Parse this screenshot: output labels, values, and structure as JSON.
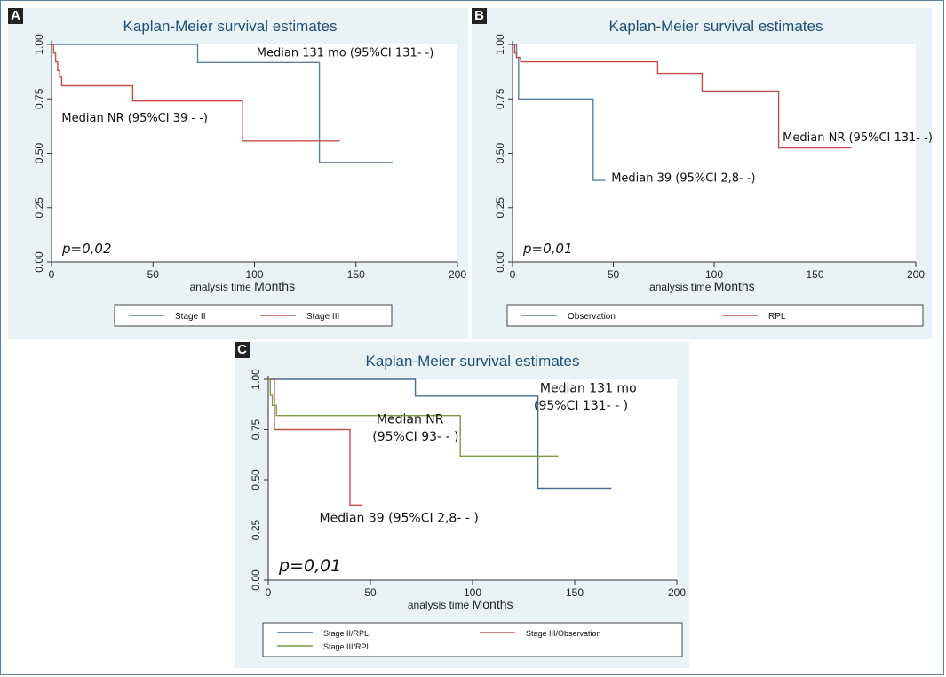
{
  "figure": {
    "panel_labels": [
      "A",
      "B",
      "C"
    ]
  },
  "chart_data": [
    {
      "type": "line",
      "title": "Kaplan-Meier survival estimates",
      "xlabel": "analysis time",
      "xlabel_suffix": "Months",
      "ylabel": "",
      "xlim": [
        0,
        200
      ],
      "ylim": [
        0,
        1
      ],
      "x_ticks": [
        "0",
        "50",
        "100",
        "150",
        "200"
      ],
      "y_ticks": [
        "0.00",
        "0.25",
        "0.50",
        "0.75",
        "1.00"
      ],
      "grid": false,
      "legend_position": "bottom",
      "p_value": "p=0,02",
      "series": [
        {
          "name": "Stage II",
          "color": "#5b7fa3",
          "steps": [
            [
              0,
              1.0
            ],
            [
              72,
              1.0
            ],
            [
              72,
              0.917
            ],
            [
              132,
              0.917
            ],
            [
              132,
              0.458
            ],
            [
              168,
              0.458
            ]
          ]
        },
        {
          "name": "Stage III",
          "color": "#c0504d",
          "steps": [
            [
              0,
              1.0
            ],
            [
              1,
              1.0
            ],
            [
              1,
              0.96
            ],
            [
              2,
              0.96
            ],
            [
              2,
              0.92
            ],
            [
              3,
              0.92
            ],
            [
              3,
              0.88
            ],
            [
              4,
              0.88
            ],
            [
              4,
              0.85
            ],
            [
              5,
              0.85
            ],
            [
              5,
              0.81
            ],
            [
              40,
              0.81
            ],
            [
              40,
              0.74
            ],
            [
              94,
              0.74
            ],
            [
              94,
              0.556
            ],
            [
              142,
              0.556
            ]
          ]
        }
      ],
      "annotations": [
        {
          "text": "Median 131 mo (95%CI 131-   -)",
          "x": 101,
          "y": 0.945
        },
        {
          "text": "Median NR (95%CI 39 -   -)",
          "x": 5,
          "y": 0.645
        }
      ]
    },
    {
      "type": "line",
      "title": "Kaplan-Meier survival estimates",
      "xlabel": "analysis time",
      "xlabel_suffix": "Months",
      "ylabel": "",
      "xlim": [
        0,
        200
      ],
      "ylim": [
        0,
        1
      ],
      "x_ticks": [
        "0",
        "50",
        "100",
        "150",
        "200"
      ],
      "y_ticks": [
        "0.00",
        "0.25",
        "0.50",
        "0.75",
        "1.00"
      ],
      "grid": false,
      "legend_position": "bottom",
      "p_value": "p=0,01",
      "series": [
        {
          "name": "Observation",
          "color": "#5b7fa3",
          "steps": [
            [
              0,
              1.0
            ],
            [
              2,
              1.0
            ],
            [
              2,
              0.94
            ],
            [
              3,
              0.94
            ],
            [
              3,
              0.75
            ],
            [
              40,
              0.75
            ],
            [
              40,
              0.375
            ],
            [
              46,
              0.375
            ]
          ]
        },
        {
          "name": "RPL",
          "color": "#c0504d",
          "steps": [
            [
              0,
              1.0
            ],
            [
              1,
              1.0
            ],
            [
              1,
              0.96
            ],
            [
              2,
              0.96
            ],
            [
              2,
              0.94
            ],
            [
              4,
              0.94
            ],
            [
              4,
              0.92
            ],
            [
              72,
              0.92
            ],
            [
              72,
              0.867
            ],
            [
              94,
              0.867
            ],
            [
              94,
              0.786
            ],
            [
              132,
              0.786
            ],
            [
              132,
              0.524
            ],
            [
              168,
              0.524
            ]
          ]
        }
      ],
      "annotations": [
        {
          "text": "Median NR (95%CI 131-   -)",
          "x": 134,
          "y": 0.555
        },
        {
          "text": "Median 39  (95%CI 2,8-   -)",
          "x": 49,
          "y": 0.37
        }
      ]
    },
    {
      "type": "line",
      "title": "Kaplan-Meier survival estimates",
      "xlabel": "analysis time",
      "xlabel_suffix": "Months",
      "ylabel": "",
      "xlim": [
        0,
        200
      ],
      "ylim": [
        0,
        1
      ],
      "x_ticks": [
        "0",
        "50",
        "100",
        "150",
        "200"
      ],
      "y_ticks": [
        "0.00",
        "0.25",
        "0.50",
        "0.75",
        "1.00"
      ],
      "grid": false,
      "legend_position": "bottom",
      "p_value": "p=0,01",
      "series": [
        {
          "name": "Stage II/RPL",
          "color": "#4a6d91",
          "steps": [
            [
              0,
              1.0
            ],
            [
              72,
              1.0
            ],
            [
              72,
              0.917
            ],
            [
              132,
              0.917
            ],
            [
              132,
              0.458
            ],
            [
              168,
              0.458
            ]
          ]
        },
        {
          "name": "Stage III/Observation",
          "color": "#c0504d",
          "steps": [
            [
              0,
              1.0
            ],
            [
              3,
              1.0
            ],
            [
              3,
              0.75
            ],
            [
              40,
              0.75
            ],
            [
              40,
              0.375
            ],
            [
              46,
              0.375
            ]
          ]
        },
        {
          "name": "Stage III/RPL",
          "color": "#7a9a46",
          "steps": [
            [
              0,
              1.0
            ],
            [
              1,
              1.0
            ],
            [
              1,
              0.92
            ],
            [
              2,
              0.92
            ],
            [
              2,
              0.87
            ],
            [
              4,
              0.87
            ],
            [
              4,
              0.82
            ],
            [
              94,
              0.82
            ],
            [
              94,
              0.618
            ],
            [
              142,
              0.618
            ]
          ]
        }
      ],
      "annotations": [
        {
          "text": "Median 131 mo",
          "x": 133,
          "y": 0.935
        },
        {
          "text": "(95%CI 131- - )",
          "x": 130,
          "y": 0.85
        },
        {
          "text": "Median NR",
          "x": 53,
          "y": 0.78
        },
        {
          "text": "(95%CI 93- - )",
          "x": 51,
          "y": 0.695
        },
        {
          "text": "Median 39 (95%CI 2,8- - )",
          "x": 25,
          "y": 0.29
        }
      ]
    }
  ]
}
